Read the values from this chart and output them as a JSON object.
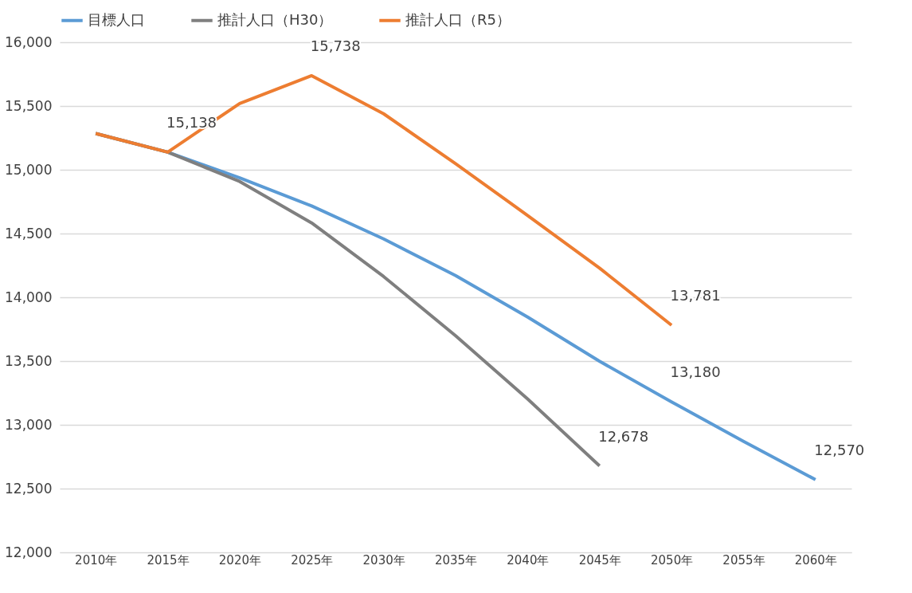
{
  "chart_data": {
    "type": "line",
    "categories": [
      "2010年",
      "2015年",
      "2020年",
      "2025年",
      "2030年",
      "2035年",
      "2040年",
      "2045年",
      "2050年",
      "2055年",
      "2060年"
    ],
    "series": [
      {
        "name": "目標人口",
        "color": "#5b9bd5",
        "values": [
          15284,
          15138,
          14937,
          14716,
          14458,
          14170,
          13845,
          13498,
          13180,
          12871,
          12570
        ],
        "value_labels": [
          null,
          "15,138",
          null,
          null,
          null,
          null,
          null,
          null,
          "13,180",
          null,
          "12,570"
        ]
      },
      {
        "name": "推計人口（H30）",
        "color": "#7f7f7f",
        "values": [
          15284,
          15138,
          14908,
          14583,
          14163,
          13698,
          13203,
          12678,
          null,
          null,
          null
        ],
        "value_labels": [
          null,
          null,
          null,
          null,
          null,
          null,
          null,
          "12,678",
          null,
          null,
          null
        ]
      },
      {
        "name": "推計人口（R5）",
        "color": "#ed7d31",
        "values": [
          15284,
          15138,
          15520,
          15738,
          15439,
          15048,
          14642,
          14229,
          13781,
          null,
          null
        ],
        "value_labels": [
          null,
          null,
          null,
          "15,738",
          null,
          null,
          null,
          null,
          "13,781",
          null,
          null
        ]
      }
    ],
    "ylim": [
      12000,
      16000
    ],
    "yticks": [
      {
        "value": 12000,
        "label": "12,000"
      },
      {
        "value": 12500,
        "label": "12,500"
      },
      {
        "value": 13000,
        "label": "13,000"
      },
      {
        "value": 13500,
        "label": "13,500"
      },
      {
        "value": 14000,
        "label": "14,000"
      },
      {
        "value": 14500,
        "label": "14,500"
      },
      {
        "value": 15000,
        "label": "15,000"
      },
      {
        "value": 15500,
        "label": "15,500"
      },
      {
        "value": 16000,
        "label": "16,000"
      }
    ],
    "grid": "y",
    "legend": "top",
    "marker": "none",
    "line_style": "solid"
  }
}
